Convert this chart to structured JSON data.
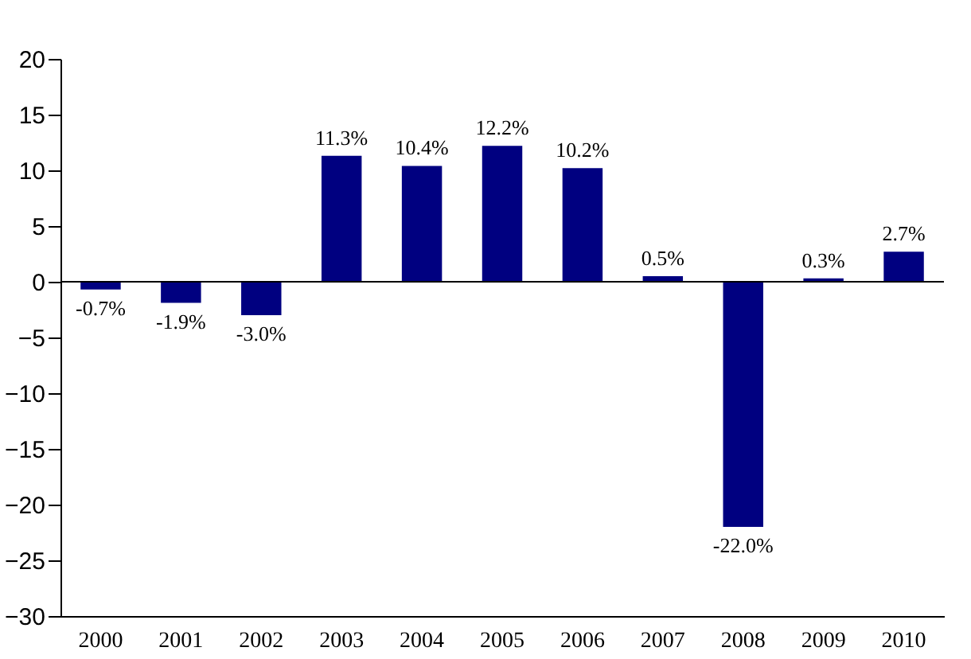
{
  "chart_data": {
    "type": "bar",
    "categories": [
      "2000",
      "2001",
      "2002",
      "2003",
      "2004",
      "2005",
      "2006",
      "2007",
      "2008",
      "2009",
      "2010"
    ],
    "values": [
      -0.7,
      -1.9,
      -3.0,
      11.3,
      10.4,
      12.2,
      10.2,
      0.5,
      -22.0,
      0.3,
      2.7
    ],
    "value_labels": [
      "-0.7%",
      "-1.9%",
      "-3.0%",
      "11.3%",
      "10.4%",
      "12.2%",
      "10.2%",
      "0.5%",
      "-22.0%",
      "0.3%",
      "2.7%"
    ],
    "color": "#000080",
    "ylim": [
      -30,
      20
    ],
    "yticks": [
      -30,
      -25,
      -20,
      -15,
      -10,
      -5,
      0,
      5,
      10,
      15,
      20
    ],
    "ref_lines": [
      {
        "axis": "y",
        "value": 0,
        "color": "#000000"
      }
    ],
    "grid": false
  }
}
